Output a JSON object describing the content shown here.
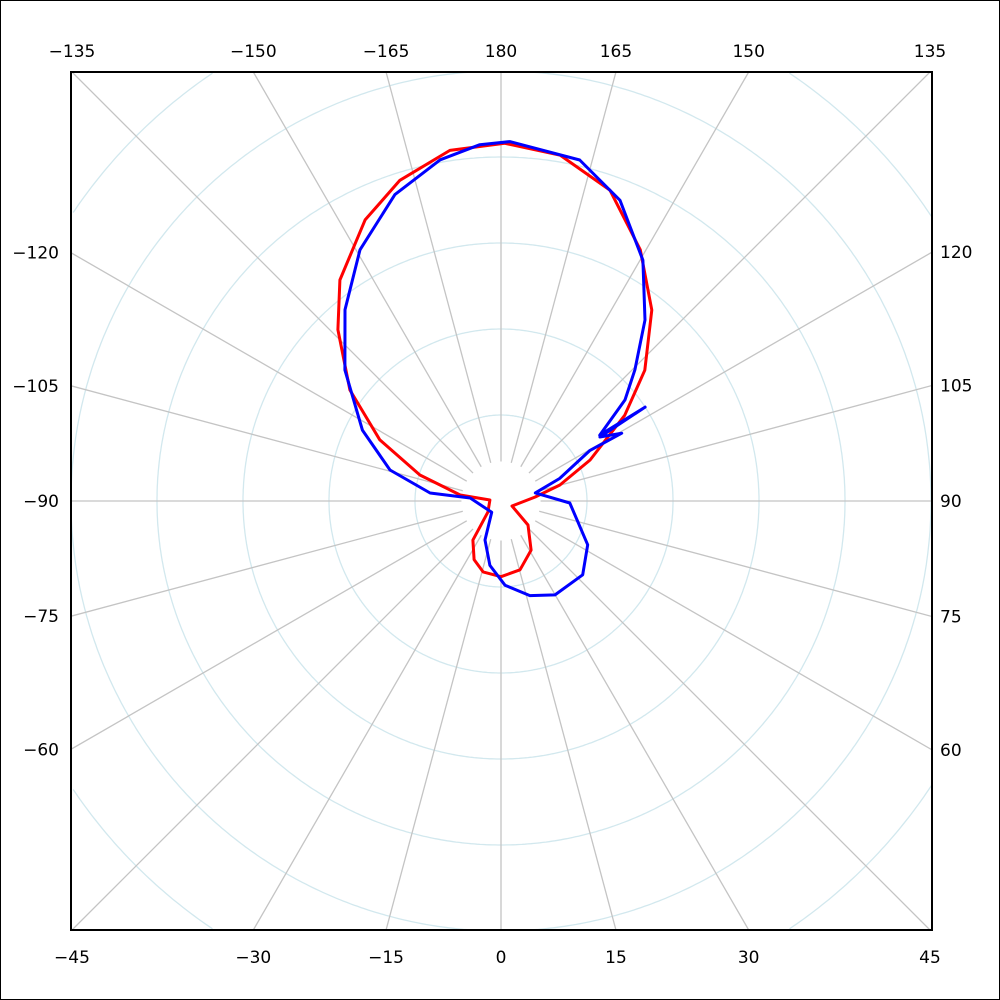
{
  "chart_data": {
    "type": "polar-line",
    "title": "",
    "angle_unit": "degrees",
    "angle_zero": "bottom",
    "angle_direction": "counterclockwise",
    "angle_tick_step": 15,
    "radial_rings": 6,
    "radial_labels": "none",
    "grid": true,
    "tick_labels": {
      "top": [
        {
          "angle": -135,
          "text": "−135"
        },
        {
          "angle": -150,
          "text": "−150"
        },
        {
          "angle": -165,
          "text": "−165"
        },
        {
          "angle": 180,
          "text": "180"
        },
        {
          "angle": 165,
          "text": "165"
        },
        {
          "angle": 150,
          "text": "150"
        },
        {
          "angle": 135,
          "text": "135"
        }
      ],
      "left": [
        {
          "angle": -120,
          "text": "−120"
        },
        {
          "angle": -105,
          "text": "−105"
        },
        {
          "angle": -90,
          "text": "−90"
        },
        {
          "angle": -75,
          "text": "−75"
        },
        {
          "angle": -60,
          "text": "−60"
        }
      ],
      "right": [
        {
          "angle": 120,
          "text": "120"
        },
        {
          "angle": 105,
          "text": "105"
        },
        {
          "angle": 90,
          "text": "90"
        },
        {
          "angle": 75,
          "text": "75"
        },
        {
          "angle": 60,
          "text": "60"
        }
      ],
      "bottom": [
        {
          "angle": -45,
          "text": "−45"
        },
        {
          "angle": -30,
          "text": "−30"
        },
        {
          "angle": -15,
          "text": "−15"
        },
        {
          "angle": 0,
          "text": "0"
        },
        {
          "angle": 15,
          "text": "15"
        },
        {
          "angle": 30,
          "text": "30"
        },
        {
          "angle": 45,
          "text": "45"
        }
      ]
    },
    "colors": {
      "grid_radial": "#c4c4c4",
      "grid_rings": "#d2e8ee",
      "frame": "#000000"
    },
    "series": [
      {
        "color": "#ff0000",
        "points": [
          [
            -171.7,
            4.12
          ],
          [
            -162.5,
            3.91
          ],
          [
            -154.2,
            3.63
          ],
          [
            -143.9,
            3.18
          ],
          [
            -136.4,
            2.75
          ],
          [
            -126.3,
            2.18
          ],
          [
            -116.8,
            1.58
          ],
          [
            -107.8,
            0.99
          ],
          [
            -98.3,
            0.48
          ],
          [
            -95,
            0.13
          ],
          [
            -49.8,
            0.2
          ],
          [
            -35.7,
            0.56
          ],
          [
            -24.6,
            0.75
          ],
          [
            -14.2,
            0.85
          ],
          [
            0,
            0.88
          ],
          [
            15.4,
            0.83
          ],
          [
            31.5,
            0.67
          ],
          [
            48.4,
            0.42
          ],
          [
            65.6,
            0.14
          ],
          [
            96.7,
            0.4
          ],
          [
            105.2,
            0.71
          ],
          [
            114.7,
            1.14
          ],
          [
            124.7,
            1.75
          ],
          [
            132.3,
            2.26
          ],
          [
            141.7,
            2.83
          ],
          [
            151.0,
            3.34
          ],
          [
            160.7,
            3.83
          ],
          [
            170.3,
            4.08
          ],
          [
            179.4,
            4.16
          ]
        ]
      },
      {
        "color": "#0000ff",
        "points": [
          [
            -176.6,
            4.15
          ],
          [
            -169.9,
            4.03
          ],
          [
            -160.9,
            3.77
          ],
          [
            -150.7,
            3.35
          ],
          [
            -140.8,
            2.87
          ],
          [
            -130.0,
            2.37
          ],
          [
            -117.1,
            1.81
          ],
          [
            -105.6,
            1.34
          ],
          [
            -96.4,
            0.83
          ],
          [
            -95.5,
            0.36
          ],
          [
            -39.3,
            0.17
          ],
          [
            -22.3,
            0.49
          ],
          [
            -9.8,
            0.76
          ],
          [
            2.7,
            0.98
          ],
          [
            17.0,
            1.15
          ],
          [
            29.9,
            1.26
          ],
          [
            47.9,
            1.28
          ],
          [
            63.2,
            1.13
          ],
          [
            88.3,
            0.8
          ],
          [
            103.2,
            0.41
          ],
          [
            111.0,
            0.73
          ],
          [
            119.6,
            1.19
          ],
          [
            119.3,
            1.61
          ],
          [
            122.9,
            1.37
          ],
          [
            123.1,
            2.0
          ],
          [
            123.7,
            1.38
          ],
          [
            129.2,
            1.86
          ],
          [
            134.4,
            2.18
          ],
          [
            141.5,
            2.69
          ],
          [
            149.5,
            3.25
          ],
          [
            158.4,
            3.76
          ],
          [
            167.0,
            4.07
          ],
          [
            178.6,
            4.18
          ]
        ]
      }
    ]
  }
}
